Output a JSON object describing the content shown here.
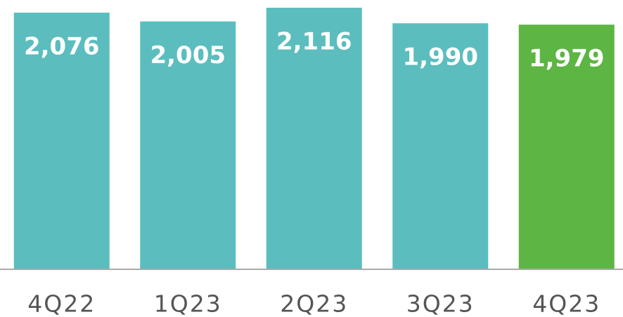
{
  "chart_data": {
    "type": "bar",
    "categories": [
      "4Q22",
      "1Q23",
      "2Q23",
      "3Q23",
      "4Q23"
    ],
    "values": [
      2076,
      2005,
      2116,
      1990,
      1979
    ],
    "value_labels": [
      "2,076",
      "2,005",
      "2,116",
      "1,990",
      "1,979"
    ],
    "colors": [
      "#5bbdbe",
      "#5bbdbe",
      "#5bbdbe",
      "#5bbdbe",
      "#5db543"
    ]
  }
}
